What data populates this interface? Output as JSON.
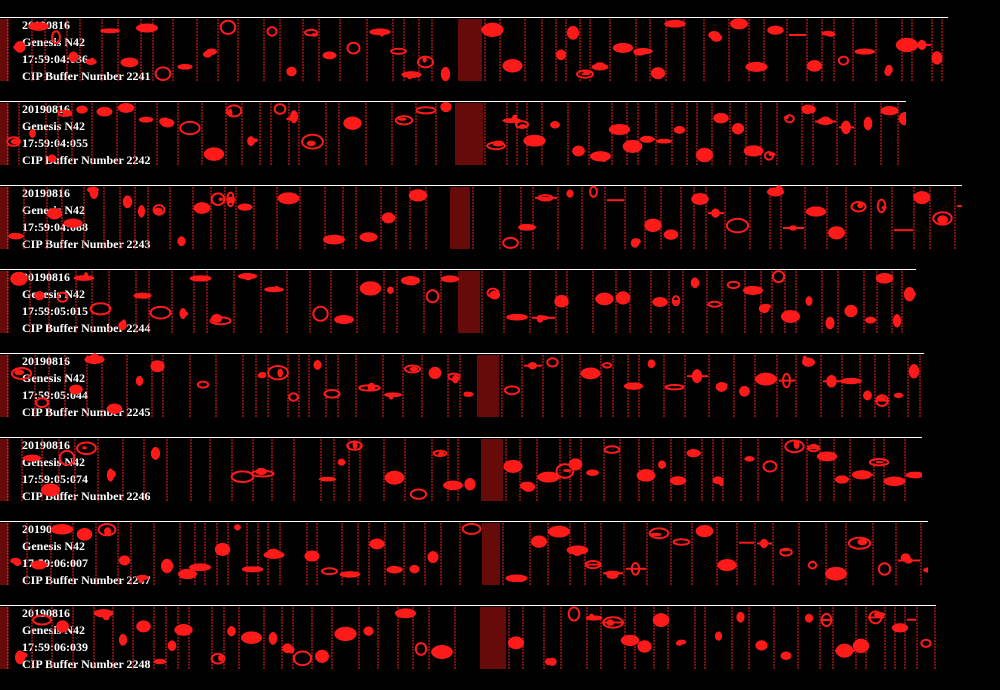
{
  "strips": [
    {
      "date": "20190816",
      "probe": "Genesis N42",
      "time": "17:59:04:036",
      "caption": "CIP Buffer Number 2241"
    },
    {
      "date": "20190816",
      "probe": "Genesis N42",
      "time": "17:59:04:055",
      "caption": "CIP Buffer Number 2242"
    },
    {
      "date": "20190816",
      "probe": "Genesis N42",
      "time": "17:59:04:088",
      "caption": "CIP Buffer Number 2243"
    },
    {
      "date": "20190816",
      "probe": "Genesis N42",
      "time": "17:59:05:015",
      "caption": "CIP Buffer Number 2244"
    },
    {
      "date": "20190816",
      "probe": "Genesis N42",
      "time": "17:59:05:044",
      "caption": "CIP Buffer Number 2245"
    },
    {
      "date": "20190816",
      "probe": "Genesis N42",
      "time": "17:59:05:074",
      "caption": "CIP Buffer Number 2246"
    },
    {
      "date": "20190816",
      "probe": "Genesis N42",
      "time": "17:59:06:007",
      "caption": "CIP Buffer Number 2247"
    },
    {
      "date": "20190816",
      "probe": "Genesis N42",
      "time": "17:59:06:039",
      "caption": "CIP Buffer Number 2248"
    }
  ],
  "colors": {
    "background": "#000000",
    "particle": "#ff1a1a",
    "frame": "#ffffff",
    "text": "#ffffff"
  }
}
